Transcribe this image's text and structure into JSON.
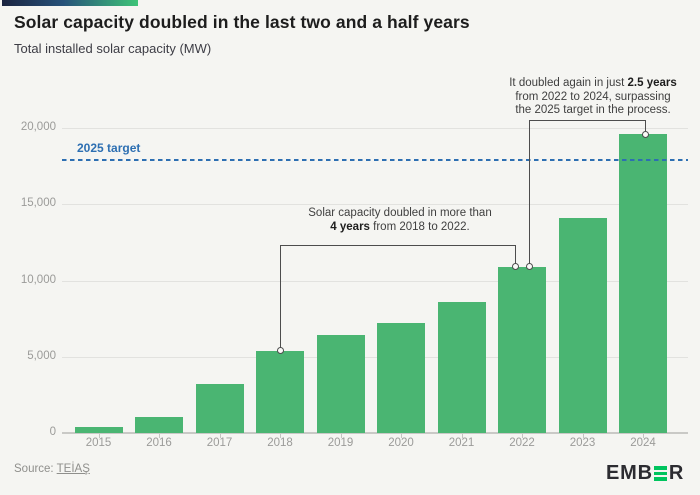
{
  "header": {
    "title": "Solar capacity doubled in the last two and a half years",
    "subtitle": "Total installed solar capacity (MW)"
  },
  "chart_data": {
    "type": "bar",
    "title": "Solar capacity doubled in the last two and a half years",
    "subtitle": "Total installed solar capacity (MW)",
    "unit": "MW",
    "categories": [
      "2015",
      "2016",
      "2017",
      "2018",
      "2019",
      "2020",
      "2021",
      "2022",
      "2023",
      "2024"
    ],
    "values": [
      400,
      1050,
      3200,
      5400,
      6400,
      7200,
      8600,
      10900,
      14100,
      19600
    ],
    "ylim": [
      0,
      20000
    ],
    "yticks": {
      "values": [
        0,
        5000,
        10000,
        15000,
        20000
      ],
      "labels": [
        "0",
        "5,000",
        "10,000",
        "15,000",
        "20,000"
      ]
    },
    "grid": "horizontal",
    "legend": "none",
    "target_line": {
      "label": "2025 target",
      "value": 17900,
      "style": "dashed"
    }
  },
  "annotations": {
    "first": {
      "line1": "Solar capacity doubled in more than",
      "line2_bold": "4 years",
      "line2_rest": " from 2018 to 2022.",
      "connects": [
        "2018",
        "2022"
      ]
    },
    "second": {
      "line1_pre": "It doubled again in just ",
      "line1_bold": "2.5 years",
      "line2": "from 2022 to 2024, surpassing",
      "line3": "the 2025 target in the process.",
      "connects": [
        "2022",
        "2024"
      ]
    }
  },
  "footer": {
    "source_prefix": "Source:",
    "source_link": "TEİAŞ"
  },
  "logo": {
    "left": "EMB",
    "right": "R",
    "alt": "EMBER"
  },
  "colors": {
    "background": "#f5f5f2",
    "bar_green": "#4ab572",
    "target_blue": "#2d6fb2",
    "gridline": "#e2e2df",
    "axis_line": "#c9c9c6",
    "axis_text": "#9b9b99",
    "title_text": "#1d1d1d",
    "annotation_text": "#3f3f3f",
    "connector": "#4d4d4d",
    "logo_navy": "#2c2c31",
    "logo_green": "#00c45e",
    "accent_gradient_start": "#1b2440",
    "accent_gradient_end": "#3ec478"
  }
}
